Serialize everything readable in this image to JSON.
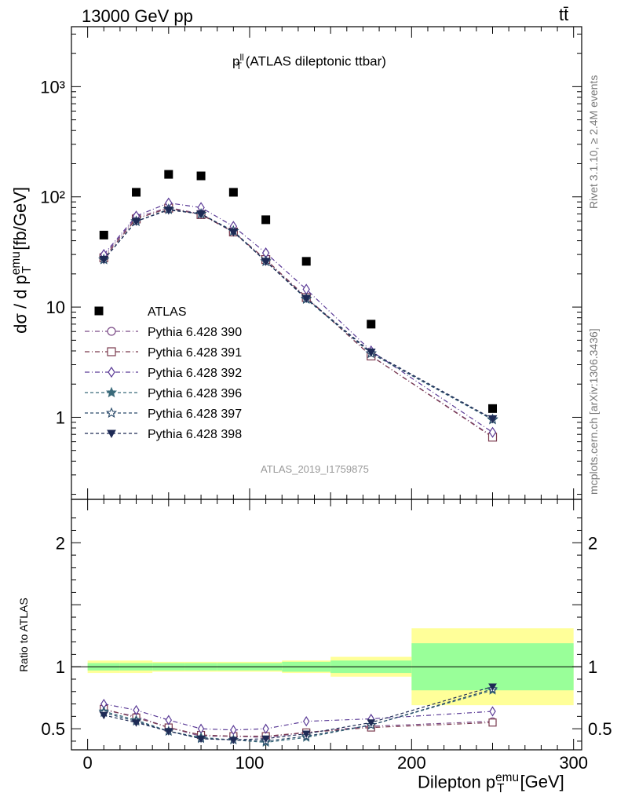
{
  "header": {
    "energy_label": "13000 GeV pp",
    "process_label": "tt̄"
  },
  "side_labels": {
    "rivet": "Rivet 3.1.10, ≥ 2.4M events",
    "mcplots": "mcplots.cern.ch [arXiv:1306.3436]"
  },
  "analysis_id": "ATLAS_2019_I1759875",
  "colors": {
    "data": "#000000",
    "p390": "#7a4a86",
    "p391": "#7a3a4e",
    "p392": "#5a3a96",
    "p396": "#3a6a7a",
    "p397": "#2a4a6a",
    "p398": "#1e2a55",
    "band_inner": "#99ff99",
    "band_outer": "#ffff99"
  },
  "chart_data": {
    "type": "scatter",
    "title_main": "p",
    "title_sup": "ll",
    "title_sub": "T",
    "title_rest": " (ATLAS dileptonic ttbar)",
    "ylabel_main": "dσ / d p",
    "ylabel_sup": "emu",
    "ylabel_sub": "T",
    "ylabel_rest": " [fb/GeV]",
    "ratio_ylabel": "Ratio to ATLAS",
    "xlabel_main": "Dilepton p",
    "xlabel_sup": "emu",
    "xlabel_sub": "T",
    "xlabel_rest": " [GeV]",
    "xlim": [
      -10,
      305
    ],
    "ylim_log": [
      0.18,
      3500
    ],
    "ratio_ylim": [
      0.33,
      2.35
    ],
    "main_ticks": [
      {
        "value": 1,
        "label": "1"
      },
      {
        "value": 10,
        "label": "10"
      },
      {
        "value": 100,
        "label": "10²"
      },
      {
        "value": 1000,
        "label": "10³"
      }
    ],
    "ratio_ticks": [
      {
        "value": 0.5,
        "label": "0.5"
      },
      {
        "value": 1,
        "label": "1"
      },
      {
        "value": 2,
        "label": "2"
      }
    ],
    "x_ticks": [
      {
        "value": 0,
        "label": "0"
      },
      {
        "value": 100,
        "label": "100"
      },
      {
        "value": 200,
        "label": "200"
      },
      {
        "value": 300,
        "label": "300"
      }
    ],
    "bin_edges": [
      0,
      20,
      40,
      60,
      80,
      100,
      120,
      150,
      200,
      300
    ],
    "x": [
      10,
      30,
      50,
      70,
      90,
      110,
      135,
      175,
      250
    ],
    "data": {
      "name": "ATLAS",
      "values": [
        45,
        110,
        160,
        155,
        110,
        62,
        26,
        7.0,
        1.2
      ],
      "ratio_inner": [
        0.03,
        0.03,
        0.03,
        0.03,
        0.03,
        0.03,
        0.04,
        0.05,
        0.19
      ],
      "ratio_outer": [
        0.05,
        0.05,
        0.04,
        0.04,
        0.04,
        0.04,
        0.05,
        0.08,
        0.31
      ]
    },
    "series": [
      {
        "name": "Pythia 6.428 390",
        "color_key": "p390",
        "marker": "circle",
        "values": [
          29,
          65,
          80,
          70,
          48,
          27,
          12.3,
          3.6,
          0.67
        ],
        "ratio": [
          0.65,
          0.6,
          0.51,
          0.44,
          0.44,
          0.43,
          0.47,
          0.52,
          0.56
        ]
      },
      {
        "name": "Pythia 6.428 391",
        "color_key": "p391",
        "marker": "square",
        "values": [
          28,
          63,
          79,
          69,
          48,
          27,
          12.2,
          3.6,
          0.66
        ],
        "ratio": [
          0.66,
          0.59,
          0.51,
          0.45,
          0.44,
          0.44,
          0.47,
          0.51,
          0.55
        ]
      },
      {
        "name": "Pythia 6.428 392",
        "color_key": "p392",
        "marker": "diamond",
        "values": [
          30,
          67,
          88,
          80,
          54,
          31,
          14.5,
          4.0,
          0.73
        ],
        "ratio": [
          0.7,
          0.65,
          0.57,
          0.5,
          0.49,
          0.5,
          0.56,
          0.58,
          0.64
        ]
      },
      {
        "name": "Pythia 6.428 396",
        "color_key": "p396",
        "marker": "star-filled",
        "values": [
          27,
          60,
          77,
          70,
          49,
          26,
          11.8,
          3.8,
          0.95
        ],
        "ratio": [
          0.64,
          0.57,
          0.48,
          0.43,
          0.41,
          0.39,
          0.43,
          0.53,
          0.81
        ]
      },
      {
        "name": "Pythia 6.428 397",
        "color_key": "p397",
        "marker": "star-open",
        "values": [
          27,
          60,
          77,
          70,
          49,
          26,
          11.9,
          3.8,
          0.96
        ],
        "ratio": [
          0.63,
          0.56,
          0.48,
          0.42,
          0.41,
          0.4,
          0.44,
          0.53,
          0.82
        ]
      },
      {
        "name": "Pythia 6.428 398",
        "color_key": "p398",
        "marker": "triangle-down",
        "values": [
          27,
          60,
          76,
          70,
          48,
          26,
          12.0,
          3.9,
          0.97
        ],
        "ratio": [
          0.61,
          0.55,
          0.48,
          0.42,
          0.41,
          0.42,
          0.46,
          0.55,
          0.84
        ]
      }
    ],
    "legend_placement": "left-middle"
  }
}
